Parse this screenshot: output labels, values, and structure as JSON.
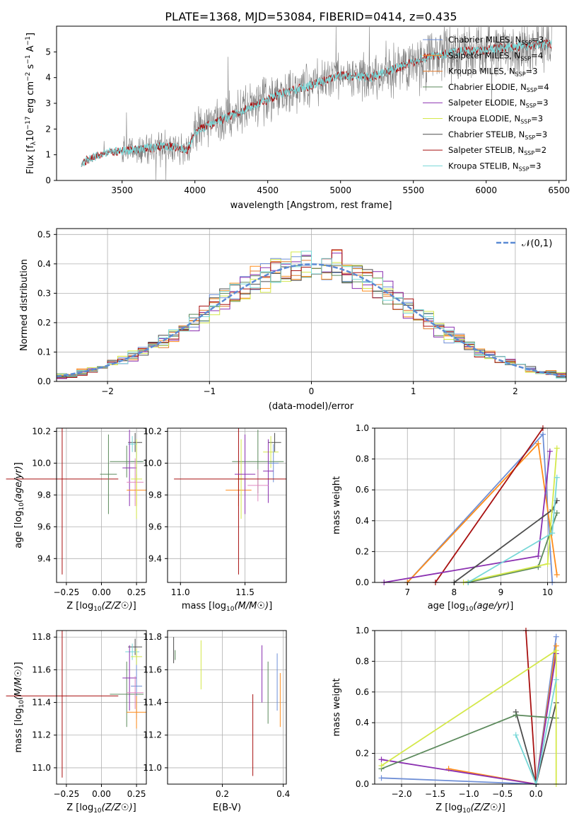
{
  "figure": {
    "title": "PLATE=1368, MJD=53084, FIBERID=0414, z=0.435"
  },
  "colors": {
    "models": [
      "#6f8fd6",
      "#ff8c1a",
      "#e07a2c",
      "#5c8a5c",
      "#8a2fb0",
      "#d4e84a",
      "#4d4d4d",
      "#a81010",
      "#76d7d7"
    ],
    "spectrum": "#808080",
    "normal": "#5b8bd4",
    "extra": [
      "#e088c0"
    ]
  },
  "spectrum_panel": {
    "xlabel": "wavelength [Angstrom, rest frame]",
    "ylabel": "Flux [f",
    "xticks": [
      "3500",
      "4000",
      "4500",
      "5000",
      "5500",
      "6000",
      "6500"
    ],
    "yticks": [
      "0",
      "1",
      "2",
      "3",
      "4",
      "5"
    ],
    "legend": [
      "Chabrier MILES, N",
      "Salpeter MILES, N",
      "Kroupa MILES, N",
      "Chabrier ELODIE, N",
      "Salpeter ELODIE, N",
      "Kroupa ELODIE, N",
      "Chabrier STELIB, N",
      "Salpeter STELIB, N",
      "Kroupa STELIB, N"
    ],
    "legend_n": [
      "3",
      "4",
      "3",
      "4",
      "3",
      "3",
      "3",
      "2",
      "3"
    ]
  },
  "chart_data": [
    {
      "type": "line",
      "id": "spectrum",
      "xlim": [
        3050,
        6550
      ],
      "ylim": [
        0,
        6
      ],
      "x_start": 3220,
      "series_profile": {
        "x": [
          3220,
          3400,
          3600,
          3800,
          3950,
          4000,
          4200,
          4400,
          4600,
          4800,
          5000,
          5200,
          5400,
          5600,
          5800,
          6000,
          6200,
          6400
        ],
        "y": [
          0.7,
          1.1,
          1.2,
          1.35,
          1.2,
          1.9,
          2.4,
          2.9,
          3.4,
          3.7,
          4.1,
          4.0,
          4.4,
          4.8,
          5.0,
          5.1,
          5.2,
          5.3
        ]
      }
    },
    {
      "type": "bar",
      "id": "residuals",
      "xlim": [
        -2.5,
        2.5
      ],
      "ylim": [
        0,
        0.52
      ],
      "xticks": [
        "−2",
        "−1",
        "0",
        "1",
        "2"
      ],
      "yticks": [
        "0.0",
        "0.1",
        "0.2",
        "0.3",
        "0.4",
        "0.5"
      ],
      "xlabel": "(data-model)/error",
      "ylabel": "Normed distribution",
      "legend": "𝒩(0,1)",
      "bin_width": 0.1
    },
    {
      "type": "scatter",
      "id": "age_vs_Z",
      "xlim": [
        -0.32,
        0.32
      ],
      "ylim": [
        9.25,
        10.22
      ],
      "xticks": [
        "−0.25",
        "0.00",
        "0.25"
      ],
      "yticks": [
        "9.4",
        "9.6",
        "9.8",
        "10.0",
        "10.2"
      ],
      "xlabel": "Z [log",
      "ylabel": "age  [log",
      "points": [
        {
          "x": 0.24,
          "y": 10.13,
          "xe": 0.05,
          "ye": 0.06,
          "c": 6
        },
        {
          "x": 0.22,
          "y": 10.12,
          "xe": 0.03,
          "ye": 0.05,
          "c": 8
        },
        {
          "x": 0.25,
          "y": 10.01,
          "xe": 0.04,
          "ye": 0.12,
          "c": 0
        },
        {
          "x": 0.18,
          "y": 10.01,
          "xe": 0.12,
          "ye": 0.1,
          "c": 3
        },
        {
          "x": 0.2,
          "y": 9.97,
          "xe": 0.05,
          "ye": 0.24,
          "c": 4
        },
        {
          "x": 0.24,
          "y": 9.88,
          "xe": 0.06,
          "ye": 0.15,
          "c": 9
        },
        {
          "x": 0.25,
          "y": 9.83,
          "xe": 0.07,
          "ye": 0.1,
          "c": 1
        },
        {
          "x": 0.25,
          "y": 9.9,
          "xe": 0.04,
          "ye": 0.25,
          "c": 5
        },
        {
          "x": -0.28,
          "y": 9.9,
          "xe": 0.4,
          "ye": 0.6,
          "c": 7
        },
        {
          "x": 0.05,
          "y": 9.93,
          "xe": 0.06,
          "ye": 0.25,
          "c": 3
        }
      ]
    },
    {
      "type": "scatter",
      "id": "age_vs_mass",
      "xlim": [
        10.9,
        11.82
      ],
      "ylim": [
        9.25,
        10.22
      ],
      "xticks": [
        "11.0",
        "11.5"
      ],
      "yticks": [
        "9.4",
        "9.6",
        "9.8",
        "10.0",
        "10.2"
      ],
      "xlabel": "mass [log",
      "points": [
        {
          "x": 11.73,
          "y": 10.13,
          "xe": 0.05,
          "ye": 0.06,
          "c": 6
        },
        {
          "x": 11.7,
          "y": 10.07,
          "xe": 0.06,
          "ye": 0.1,
          "c": 5
        },
        {
          "x": 11.72,
          "y": 10.0,
          "xe": 0.04,
          "ye": 0.12,
          "c": 0
        },
        {
          "x": 11.6,
          "y": 10.01,
          "xe": 0.2,
          "ye": 0.2,
          "c": 3
        },
        {
          "x": 11.68,
          "y": 9.95,
          "xe": 0.04,
          "ye": 0.2,
          "c": 4
        },
        {
          "x": 11.6,
          "y": 9.86,
          "xe": 0.08,
          "ye": 0.1,
          "c": 9
        },
        {
          "x": 11.45,
          "y": 9.83,
          "xe": 0.1,
          "ye": 0.1,
          "c": 1
        },
        {
          "x": 11.47,
          "y": 9.9,
          "xe": 0.05,
          "ye": 0.25,
          "c": 5
        },
        {
          "x": 11.45,
          "y": 9.9,
          "xe": 0.5,
          "ye": 0.6,
          "c": 7
        },
        {
          "x": 11.5,
          "y": 9.93,
          "xe": 0.08,
          "ye": 0.25,
          "c": 4
        }
      ]
    },
    {
      "type": "line",
      "id": "weight_vs_age",
      "xlim": [
        6.3,
        10.4
      ],
      "ylim": [
        0,
        1
      ],
      "xticks": [
        "7",
        "8",
        "9",
        "10"
      ],
      "yticks": [
        "0.0",
        "0.2",
        "0.4",
        "0.6",
        "0.8",
        "1.0"
      ],
      "xlabel": "age  [log",
      "ylabel": "mass weight",
      "series": [
        {
          "c": 0,
          "x": [
            7.0,
            9.9,
            10.1
          ],
          "y": [
            0.0,
            0.96,
            0.0
          ]
        },
        {
          "c": 1,
          "x": [
            7.0,
            9.8,
            10.2
          ],
          "y": [
            0.0,
            0.9,
            0.05
          ]
        },
        {
          "c": 9,
          "x": [
            7.0,
            9.8,
            10.2
          ],
          "y": [
            0.0,
            0.87,
            0.08
          ]
        },
        {
          "c": 7,
          "x": [
            7.6,
            9.9
          ],
          "y": [
            0.0,
            1.0
          ]
        },
        {
          "c": 4,
          "x": [
            6.5,
            9.8,
            10.05
          ],
          "y": [
            0.0,
            0.17,
            0.85
          ]
        },
        {
          "c": 6,
          "x": [
            8.0,
            10.1,
            10.2
          ],
          "y": [
            0.0,
            0.47,
            0.53
          ]
        },
        {
          "c": 3,
          "x": [
            8.3,
            9.8,
            10.2
          ],
          "y": [
            0.0,
            0.1,
            0.45
          ]
        },
        {
          "c": 5,
          "x": [
            8.2,
            10.0,
            10.2
          ],
          "y": [
            0.0,
            0.12,
            0.87
          ]
        },
        {
          "c": 8,
          "x": [
            8.3,
            10.1,
            10.2
          ],
          "y": [
            0.0,
            0.32,
            0.68
          ]
        }
      ]
    },
    {
      "type": "scatter",
      "id": "mass_vs_Z",
      "xlim": [
        -0.32,
        0.32
      ],
      "ylim": [
        10.9,
        11.84
      ],
      "xticks": [
        "−0.25",
        "0.00",
        "0.25"
      ],
      "yticks": [
        "11.0",
        "11.2",
        "11.4",
        "11.6",
        "11.8"
      ],
      "xlabel": "Z [log",
      "ylabel": "mass [log",
      "points": [
        {
          "x": 0.24,
          "y": 11.74,
          "xe": 0.05,
          "ye": 0.05,
          "c": 6
        },
        {
          "x": 0.22,
          "y": 11.71,
          "xe": 0.05,
          "ye": 0.05,
          "c": 8
        },
        {
          "x": 0.25,
          "y": 11.5,
          "xe": 0.04,
          "ye": 0.2,
          "c": 0
        },
        {
          "x": 0.18,
          "y": 11.45,
          "xe": 0.12,
          "ye": 0.2,
          "c": 3
        },
        {
          "x": 0.2,
          "y": 11.55,
          "xe": 0.05,
          "ye": 0.2,
          "c": 4
        },
        {
          "x": 0.24,
          "y": 11.46,
          "xe": 0.06,
          "ye": 0.1,
          "c": 9
        },
        {
          "x": 0.25,
          "y": 11.34,
          "xe": 0.07,
          "ye": 0.1,
          "c": 1
        },
        {
          "x": 0.25,
          "y": 11.68,
          "xe": 0.04,
          "ye": 0.05,
          "c": 5
        },
        {
          "x": -0.28,
          "y": 11.44,
          "xe": 0.4,
          "ye": 0.5,
          "c": 7
        }
      ]
    },
    {
      "type": "scatter",
      "id": "mass_vs_ebv",
      "xlim": [
        0.02,
        0.41
      ],
      "ylim": [
        10.9,
        11.84
      ],
      "xticks": [
        "0.2",
        "0.4"
      ],
      "xlabel": "E(B-V)",
      "segments": [
        {
          "x": 0.04,
          "y0": 11.64,
          "y1": 11.8,
          "c": 6
        },
        {
          "x": 0.045,
          "y0": 11.66,
          "y1": 11.72,
          "c": 3
        },
        {
          "x": 0.13,
          "y0": 11.48,
          "y1": 11.78,
          "c": 5
        },
        {
          "x": 0.3,
          "y0": 10.95,
          "y1": 11.45,
          "c": 7
        },
        {
          "x": 0.33,
          "y0": 11.4,
          "y1": 11.75,
          "c": 4
        },
        {
          "x": 0.35,
          "y0": 11.27,
          "y1": 11.65,
          "c": 3
        },
        {
          "x": 0.38,
          "y0": 11.35,
          "y1": 11.7,
          "c": 0
        },
        {
          "x": 0.39,
          "y0": 11.25,
          "y1": 11.58,
          "c": 1
        },
        {
          "x": 0.4,
          "y0": 11.4,
          "y1": 11.74,
          "c": 9
        }
      ]
    },
    {
      "type": "line",
      "id": "weight_vs_Z",
      "xlim": [
        -2.4,
        0.45
      ],
      "ylim": [
        0,
        1
      ],
      "xticks": [
        "−2.0",
        "−1.5",
        "−1.0",
        "−0.5",
        "0.0"
      ],
      "yticks": [
        "0.0",
        "0.2",
        "0.4",
        "0.6",
        "0.8",
        "1.0"
      ],
      "xlabel": "Z [log",
      "ylabel": "mass weight",
      "series": [
        {
          "c": 0,
          "x": [
            -2.3,
            0.0,
            0.3
          ],
          "y": [
            0.04,
            0.0,
            0.96
          ]
        },
        {
          "c": 1,
          "x": [
            -1.3,
            0.0,
            0.3
          ],
          "y": [
            0.1,
            0.0,
            0.9
          ]
        },
        {
          "c": 9,
          "x": [
            -2.3,
            -0.3,
            0.0,
            0.3
          ],
          "y": [
            0.04,
            0.09,
            0.0,
            0.87
          ]
        },
        {
          "c": 7,
          "x": [
            -0.15,
            0.0
          ],
          "y": [
            1.0,
            0.0
          ]
        },
        {
          "c": 4,
          "x": [
            -2.3,
            0.0,
            0.3
          ],
          "y": [
            0.16,
            0.0,
            0.85
          ]
        },
        {
          "c": 6,
          "x": [
            -0.3,
            0.0,
            0.3
          ],
          "y": [
            0.47,
            0.0,
            0.53
          ]
        },
        {
          "c": 3,
          "x": [
            -2.3,
            -0.3,
            0.3
          ],
          "y": [
            0.1,
            0.45,
            0.43
          ]
        },
        {
          "c": 5,
          "x": [
            -2.3,
            0.3,
            0.3
          ],
          "y": [
            0.12,
            0.87,
            0.0
          ]
        },
        {
          "c": 8,
          "x": [
            -0.3,
            0.0,
            0.3
          ],
          "y": [
            0.32,
            0.0,
            0.68
          ]
        }
      ]
    }
  ]
}
